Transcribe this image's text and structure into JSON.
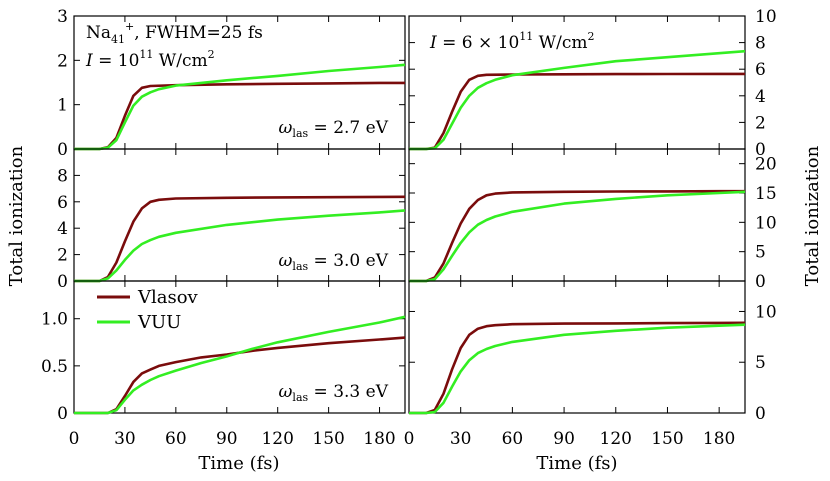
{
  "figure": {
    "xlabel": "Time (fs)",
    "ylabel_left": "Total ionization",
    "ylabel_right": "Total ionization",
    "annotations": {
      "system": {
        "prefix": "Na",
        "sub": "41",
        "sup": "+",
        "suffix": ", FWHM=25 fs"
      },
      "intensity_left": {
        "prefix": "I",
        "mid": " = 10",
        "sup": "11",
        "unit": " W/cm",
        "unit_sup": "2"
      },
      "intensity_right": {
        "prefix": "I",
        "mid": " = 6 × 10",
        "sup": "11",
        "unit": " W/cm",
        "unit_sup": "2"
      },
      "omega": [
        {
          "sym": "ω",
          "sub": "las",
          "val": " = 2.7 eV"
        },
        {
          "sym": "ω",
          "sub": "las",
          "val": " = 3.0 eV"
        },
        {
          "sym": "ω",
          "sub": "las",
          "val": " = 3.3 eV"
        }
      ]
    },
    "legend": [
      {
        "name": "Vlasov",
        "color": "#7a0c0c"
      },
      {
        "name": "VUU",
        "color": "#33ee22"
      }
    ]
  },
  "chart_data": [
    {
      "type": "line",
      "panel": "row1-left",
      "xlim": [
        0,
        195
      ],
      "ylim": [
        0,
        3
      ],
      "xticks": [
        "0",
        "30",
        "60",
        "90",
        "120",
        "150",
        "180"
      ],
      "yticks": [
        {
          "v": 0,
          "l": "0"
        },
        {
          "v": 1,
          "l": "1"
        },
        {
          "v": 2,
          "l": "2"
        },
        {
          "v": 3,
          "l": "3"
        }
      ],
      "series": [
        {
          "name": "Vlasov",
          "color": "#7a0c0c",
          "x": [
            0,
            15,
            20,
            25,
            30,
            35,
            40,
            45,
            60,
            90,
            120,
            150,
            180,
            195
          ],
          "y": [
            0,
            0,
            0.04,
            0.25,
            0.75,
            1.2,
            1.38,
            1.42,
            1.44,
            1.46,
            1.47,
            1.48,
            1.49,
            1.49
          ]
        },
        {
          "name": "VUU",
          "color": "#33ee22",
          "x": [
            0,
            15,
            20,
            25,
            30,
            35,
            40,
            45,
            50,
            60,
            90,
            120,
            150,
            180,
            195
          ],
          "y": [
            0,
            0,
            0.03,
            0.2,
            0.6,
            0.98,
            1.18,
            1.28,
            1.35,
            1.43,
            1.55,
            1.65,
            1.76,
            1.85,
            1.9
          ]
        }
      ]
    },
    {
      "type": "line",
      "panel": "row1-right",
      "xlim": [
        0,
        195
      ],
      "ylim": [
        0,
        10
      ],
      "xticks": [
        "0",
        "30",
        "60",
        "90",
        "120",
        "150",
        "180"
      ],
      "yticks": [
        {
          "v": 0,
          "l": "0"
        },
        {
          "v": 2,
          "l": "2"
        },
        {
          "v": 4,
          "l": "4"
        },
        {
          "v": 6,
          "l": "6"
        },
        {
          "v": 8,
          "l": "8"
        },
        {
          "v": 10,
          "l": "10"
        }
      ],
      "series": [
        {
          "name": "Vlasov",
          "color": "#7a0c0c",
          "x": [
            0,
            10,
            15,
            20,
            25,
            30,
            35,
            40,
            45,
            60,
            90,
            120,
            150,
            180,
            195
          ],
          "y": [
            0,
            0,
            0.1,
            1.2,
            2.8,
            4.3,
            5.2,
            5.5,
            5.58,
            5.6,
            5.62,
            5.63,
            5.64,
            5.65,
            5.65
          ]
        },
        {
          "name": "VUU",
          "color": "#33ee22",
          "x": [
            0,
            10,
            15,
            20,
            25,
            30,
            35,
            40,
            45,
            50,
            60,
            90,
            120,
            150,
            180,
            195
          ],
          "y": [
            0,
            0,
            0.05,
            0.7,
            1.9,
            3.1,
            4.0,
            4.6,
            4.95,
            5.2,
            5.55,
            6.1,
            6.6,
            6.9,
            7.2,
            7.35
          ]
        }
      ]
    },
    {
      "type": "line",
      "panel": "row2-left",
      "xlim": [
        0,
        195
      ],
      "ylim": [
        0,
        10
      ],
      "xticks": [
        "0",
        "30",
        "60",
        "90",
        "120",
        "150",
        "180"
      ],
      "yticks": [
        {
          "v": 0,
          "l": "0"
        },
        {
          "v": 2,
          "l": "2"
        },
        {
          "v": 4,
          "l": "4"
        },
        {
          "v": 6,
          "l": "6"
        },
        {
          "v": 8,
          "l": "8"
        }
      ],
      "series": [
        {
          "name": "Vlasov",
          "color": "#7a0c0c",
          "x": [
            0,
            15,
            20,
            25,
            30,
            35,
            40,
            45,
            50,
            60,
            90,
            120,
            150,
            180,
            195
          ],
          "y": [
            0,
            0,
            0.3,
            1.4,
            3.0,
            4.5,
            5.5,
            6.0,
            6.15,
            6.25,
            6.3,
            6.33,
            6.35,
            6.37,
            6.38
          ]
        },
        {
          "name": "VUU",
          "color": "#33ee22",
          "x": [
            0,
            15,
            20,
            25,
            30,
            35,
            40,
            45,
            50,
            60,
            90,
            120,
            150,
            180,
            195
          ],
          "y": [
            0,
            0,
            0.2,
            0.8,
            1.6,
            2.3,
            2.8,
            3.1,
            3.35,
            3.65,
            4.25,
            4.65,
            4.95,
            5.2,
            5.35
          ]
        }
      ]
    },
    {
      "type": "line",
      "panel": "row2-right",
      "xlim": [
        0,
        195
      ],
      "ylim": [
        0,
        22.5
      ],
      "xticks": [
        "0",
        "30",
        "60",
        "90",
        "120",
        "150",
        "180"
      ],
      "yticks": [
        {
          "v": 0,
          "l": "0"
        },
        {
          "v": 5,
          "l": "5"
        },
        {
          "v": 10,
          "l": "10"
        },
        {
          "v": 15,
          "l": "15"
        },
        {
          "v": 20,
          "l": "20"
        }
      ],
      "series": [
        {
          "name": "Vlasov",
          "color": "#7a0c0c",
          "x": [
            0,
            10,
            15,
            20,
            25,
            30,
            35,
            40,
            45,
            50,
            60,
            90,
            120,
            150,
            180,
            195
          ],
          "y": [
            0,
            0,
            0.6,
            3.0,
            6.5,
            9.8,
            12.3,
            13.8,
            14.6,
            14.9,
            15.1,
            15.2,
            15.25,
            15.28,
            15.3,
            15.3
          ]
        },
        {
          "name": "VUU",
          "color": "#33ee22",
          "x": [
            0,
            10,
            15,
            20,
            25,
            30,
            35,
            40,
            45,
            50,
            60,
            90,
            120,
            150,
            180,
            195
          ],
          "y": [
            0,
            0,
            0.3,
            2.0,
            4.3,
            6.5,
            8.3,
            9.6,
            10.4,
            11.0,
            11.8,
            13.2,
            14.0,
            14.6,
            15.0,
            15.2
          ]
        }
      ]
    },
    {
      "type": "line",
      "panel": "row3-left",
      "xlim": [
        0,
        195
      ],
      "ylim": [
        0,
        1.4
      ],
      "xticks": [
        "0",
        "30",
        "60",
        "90",
        "120",
        "150",
        "180"
      ],
      "yticks": [
        {
          "v": 0,
          "l": "0"
        },
        {
          "v": 0.5,
          "l": "0.5"
        },
        {
          "v": 1.0,
          "l": "1.0"
        }
      ],
      "series": [
        {
          "name": "Vlasov",
          "color": "#7a0c0c",
          "x": [
            0,
            20,
            25,
            30,
            35,
            40,
            45,
            50,
            60,
            75,
            90,
            105,
            120,
            150,
            180,
            195
          ],
          "y": [
            0,
            0,
            0.04,
            0.18,
            0.33,
            0.42,
            0.46,
            0.5,
            0.54,
            0.59,
            0.62,
            0.66,
            0.69,
            0.74,
            0.78,
            0.8
          ]
        },
        {
          "name": "VUU",
          "color": "#33ee22",
          "x": [
            0,
            20,
            25,
            30,
            35,
            40,
            45,
            50,
            60,
            75,
            90,
            105,
            120,
            150,
            180,
            195
          ],
          "y": [
            0,
            0,
            0.03,
            0.14,
            0.24,
            0.3,
            0.35,
            0.39,
            0.45,
            0.53,
            0.6,
            0.68,
            0.75,
            0.86,
            0.96,
            1.02
          ]
        }
      ]
    },
    {
      "type": "line",
      "panel": "row3-right",
      "xlim": [
        0,
        195
      ],
      "ylim": [
        0,
        13
      ],
      "xticks": [
        "0",
        "30",
        "60",
        "90",
        "120",
        "150",
        "180"
      ],
      "yticks": [
        {
          "v": 0,
          "l": "0"
        },
        {
          "v": 5,
          "l": "5"
        },
        {
          "v": 10,
          "l": "10"
        }
      ],
      "series": [
        {
          "name": "Vlasov",
          "color": "#7a0c0c",
          "x": [
            0,
            10,
            15,
            20,
            25,
            30,
            35,
            40,
            45,
            50,
            60,
            90,
            120,
            150,
            180,
            195
          ],
          "y": [
            0,
            0,
            0.3,
            1.9,
            4.3,
            6.4,
            7.7,
            8.3,
            8.55,
            8.65,
            8.75,
            8.8,
            8.82,
            8.85,
            8.87,
            8.88
          ]
        },
        {
          "name": "VUU",
          "color": "#33ee22",
          "x": [
            0,
            10,
            15,
            20,
            25,
            30,
            35,
            40,
            45,
            50,
            60,
            90,
            120,
            150,
            180,
            195
          ],
          "y": [
            0,
            0,
            0.1,
            1.0,
            2.6,
            4.1,
            5.2,
            5.9,
            6.3,
            6.6,
            7.0,
            7.7,
            8.1,
            8.4,
            8.6,
            8.7
          ]
        }
      ]
    }
  ]
}
